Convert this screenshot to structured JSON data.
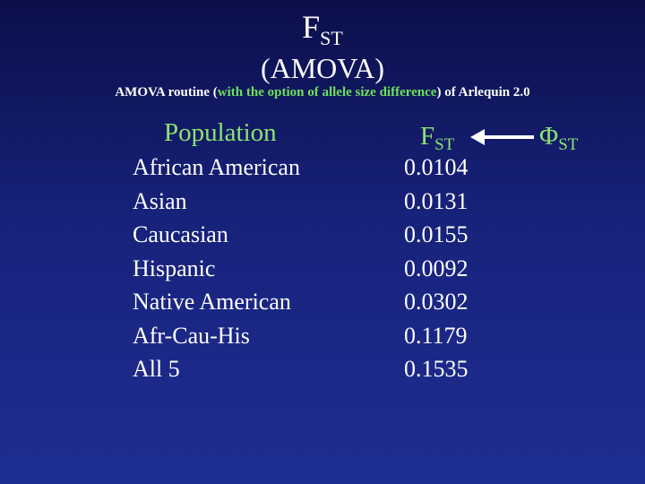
{
  "title": {
    "main": "F",
    "main_sub": "ST",
    "line2": "(AMOVA)"
  },
  "subtitle": {
    "part1": "AMOVA routine (",
    "highlight": "with the option of allele size difference",
    "part2": ") of Arlequin 2.0"
  },
  "table": {
    "population_header": "Population",
    "fst_header": "F",
    "fst_header_sub": "ST",
    "phi_header": "Φ",
    "phi_header_sub": "ST",
    "arrow_icon": "left-arrow-icon",
    "populations": [
      "African American",
      "Asian",
      "Caucasian",
      "Hispanic",
      "Native American",
      "Afr-Cau-His",
      "All 5"
    ],
    "fst_values": [
      "0.0104",
      "0.0131",
      "0.0155",
      "0.0092",
      "0.0302",
      "0.1179",
      "0.1535"
    ]
  },
  "colors": {
    "background_top": "#0b0f4a",
    "background_bottom": "#1f2e93",
    "header_green": "#8be36f",
    "text_white": "#ffffff"
  }
}
